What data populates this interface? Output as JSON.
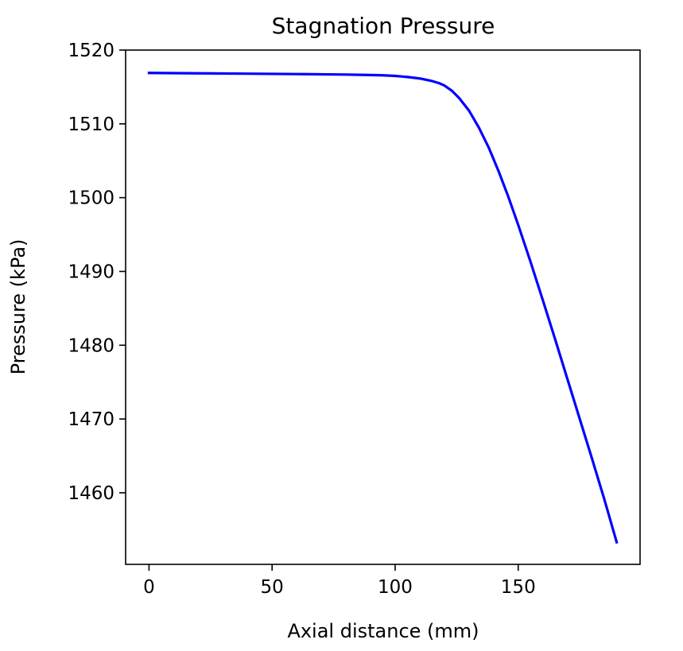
{
  "chart_data": {
    "type": "line",
    "title": "Stagnation Pressure",
    "xlabel": "Axial distance (mm)",
    "ylabel": "Pressure (kPa)",
    "xlim": [
      -9.5,
      199.5
    ],
    "ylim": [
      1450.3,
      1520
    ],
    "xticks": [
      0,
      50,
      100,
      150
    ],
    "yticks": [
      1460,
      1470,
      1480,
      1490,
      1500,
      1510,
      1520
    ],
    "grid": false,
    "legend": "none",
    "series": [
      {
        "color": "#0000ff",
        "x": [
          0,
          20,
          40,
          60,
          80,
          90,
          95,
          100,
          105,
          110,
          115,
          118,
          120,
          123,
          126,
          130,
          134,
          138,
          142,
          146,
          150,
          155,
          160,
          165,
          170,
          175,
          180,
          185,
          190
        ],
        "y": [
          1516.9,
          1516.85,
          1516.8,
          1516.75,
          1516.68,
          1516.62,
          1516.58,
          1516.5,
          1516.35,
          1516.15,
          1515.8,
          1515.5,
          1515.2,
          1514.5,
          1513.5,
          1511.8,
          1509.5,
          1506.8,
          1503.6,
          1500.1,
          1496.3,
          1491.3,
          1486.1,
          1480.8,
          1475.4,
          1470.0,
          1464.6,
          1459.1,
          1453.3
        ]
      }
    ]
  }
}
